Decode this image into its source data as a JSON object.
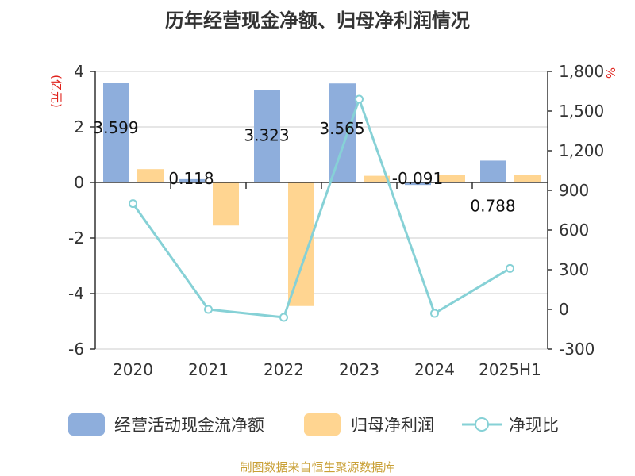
{
  "title": "历年经营现金净额、归母净利润情况",
  "left_unit": "(亿元)",
  "right_unit": "%",
  "source": "制图数据来自恒生聚源数据库",
  "colors": {
    "cash": "#8eaedc",
    "profit": "#ffd591",
    "ratio": "#86d1d6",
    "grid": "#cccccc",
    "axis": "#333333",
    "unit": "#e0211b",
    "source": "#c9a036"
  },
  "chart_data": {
    "type": "bar",
    "categories": [
      "2020",
      "2021",
      "2022",
      "2023",
      "2024",
      "2025H1"
    ],
    "series": [
      {
        "name": "经营活动现金流净额",
        "type": "bar",
        "axis": "left",
        "values": [
          3.599,
          0.118,
          3.323,
          3.565,
          -0.091,
          0.788
        ],
        "labels": [
          "3.599",
          "0.118",
          "3.323",
          "3.565",
          "-0.091",
          "0.788"
        ]
      },
      {
        "name": "归母净利润",
        "type": "bar",
        "axis": "left",
        "values": [
          0.48,
          -1.55,
          -4.45,
          0.24,
          0.27,
          0.27
        ]
      },
      {
        "name": "净现比",
        "type": "line",
        "axis": "right",
        "values": [
          800,
          0,
          -60,
          1590,
          -30,
          310
        ]
      }
    ],
    "left_axis": {
      "min": -6,
      "max": 4,
      "ticks": [
        "-6",
        "-4",
        "-2",
        "0",
        "2",
        "4"
      ]
    },
    "right_axis": {
      "min": -300,
      "max": 1800,
      "ticks": [
        "-300",
        "0",
        "300",
        "600",
        "900",
        "1,200",
        "1,500",
        "1,800"
      ]
    },
    "grid": true,
    "legend": "bottom"
  }
}
